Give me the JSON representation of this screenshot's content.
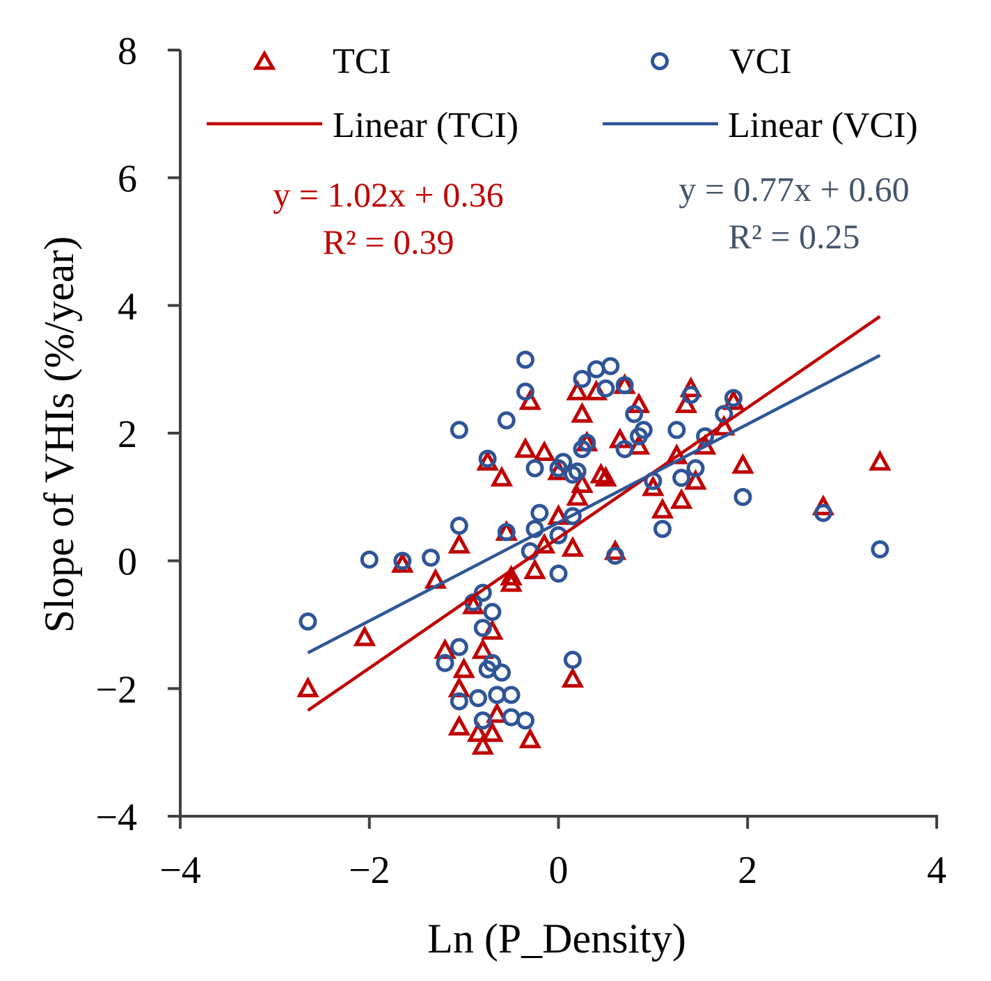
{
  "chart_data": {
    "type": "scatter",
    "xlabel": "Ln (P_Density)",
    "ylabel": "Slope of VHIs (%/year)",
    "xlim": [
      -4,
      4
    ],
    "ylim": [
      -4,
      8
    ],
    "xticks": [
      -4,
      -2,
      0,
      2,
      4
    ],
    "yticks": [
      -4,
      -2,
      0,
      2,
      4,
      6,
      8
    ],
    "xtick_labels": [
      "−4",
      "−2",
      "0",
      "2",
      "4"
    ],
    "ytick_labels": [
      "−4",
      "−2",
      "0",
      "2",
      "4",
      "6",
      "8"
    ],
    "legend": {
      "placement": "top",
      "tci_label": "TCI",
      "vci_label": "VCI",
      "linear_tci_label": "Linear (TCI)",
      "linear_vci_label": "Linear (VCI)"
    },
    "colors": {
      "tci": "#c00000",
      "vci": "#2f5597",
      "axis": "#404040",
      "vci_eq": "#44546a"
    },
    "series": [
      {
        "name": "TCI",
        "marker": "triangle",
        "points": [
          [
            -2.65,
            -2.0
          ],
          [
            -2.05,
            -1.2
          ],
          [
            -1.65,
            -0.05
          ],
          [
            -1.3,
            -0.3
          ],
          [
            -1.2,
            -1.4
          ],
          [
            -1.05,
            0.25
          ],
          [
            -1.05,
            -2.0
          ],
          [
            -1.05,
            -2.6
          ],
          [
            -1.0,
            -1.7
          ],
          [
            -0.9,
            -0.7
          ],
          [
            -0.85,
            -2.7
          ],
          [
            -0.8,
            -2.9
          ],
          [
            -0.8,
            -1.4
          ],
          [
            -0.75,
            1.55
          ],
          [
            -0.7,
            -2.7
          ],
          [
            -0.7,
            -1.1
          ],
          [
            -0.65,
            -2.4
          ],
          [
            -0.6,
            1.3
          ],
          [
            -0.55,
            0.45
          ],
          [
            -0.5,
            -0.35
          ],
          [
            -0.5,
            -0.25
          ],
          [
            -0.35,
            1.75
          ],
          [
            -0.3,
            2.5
          ],
          [
            -0.3,
            -2.8
          ],
          [
            -0.25,
            -0.15
          ],
          [
            -0.15,
            1.7
          ],
          [
            -0.15,
            0.25
          ],
          [
            0.0,
            1.4
          ],
          [
            0.0,
            0.7
          ],
          [
            0.15,
            0.2
          ],
          [
            0.15,
            -1.85
          ],
          [
            0.2,
            1.0
          ],
          [
            0.2,
            2.65
          ],
          [
            0.25,
            2.3
          ],
          [
            0.25,
            1.2
          ],
          [
            0.3,
            1.85
          ],
          [
            0.4,
            2.65
          ],
          [
            0.45,
            1.35
          ],
          [
            0.5,
            1.3
          ],
          [
            0.6,
            0.15
          ],
          [
            0.65,
            1.9
          ],
          [
            0.7,
            2.75
          ],
          [
            0.85,
            2.45
          ],
          [
            0.85,
            1.8
          ],
          [
            1.0,
            1.15
          ],
          [
            1.1,
            0.8
          ],
          [
            1.25,
            1.65
          ],
          [
            1.3,
            0.95
          ],
          [
            1.35,
            2.45
          ],
          [
            1.4,
            2.7
          ],
          [
            1.45,
            1.25
          ],
          [
            1.55,
            1.8
          ],
          [
            1.75,
            2.1
          ],
          [
            1.85,
            2.5
          ],
          [
            1.95,
            1.5
          ],
          [
            2.8,
            0.85
          ],
          [
            3.4,
            1.55
          ]
        ]
      },
      {
        "name": "VCI",
        "marker": "circle",
        "points": [
          [
            -2.65,
            -0.95
          ],
          [
            -2.0,
            0.02
          ],
          [
            -1.65,
            0.0
          ],
          [
            -1.35,
            0.05
          ],
          [
            -1.2,
            -1.6
          ],
          [
            -1.05,
            -1.35
          ],
          [
            -1.05,
            -2.2
          ],
          [
            -1.05,
            0.55
          ],
          [
            -1.05,
            2.05
          ],
          [
            -0.9,
            -0.65
          ],
          [
            -0.85,
            -2.15
          ],
          [
            -0.8,
            -1.05
          ],
          [
            -0.8,
            -0.5
          ],
          [
            -0.8,
            -2.5
          ],
          [
            -0.75,
            -1.7
          ],
          [
            -0.75,
            1.6
          ],
          [
            -0.7,
            -1.6
          ],
          [
            -0.7,
            -0.8
          ],
          [
            -0.65,
            -2.1
          ],
          [
            -0.6,
            -1.75
          ],
          [
            -0.55,
            2.2
          ],
          [
            -0.55,
            0.45
          ],
          [
            -0.5,
            -2.45
          ],
          [
            -0.5,
            -2.1
          ],
          [
            -0.35,
            -2.5
          ],
          [
            -0.35,
            2.65
          ],
          [
            -0.35,
            3.15
          ],
          [
            -0.3,
            0.15
          ],
          [
            -0.25,
            1.45
          ],
          [
            -0.25,
            0.5
          ],
          [
            -0.2,
            0.75
          ],
          [
            0.0,
            -0.2
          ],
          [
            0.0,
            0.4
          ],
          [
            0.0,
            1.45
          ],
          [
            0.05,
            1.55
          ],
          [
            0.15,
            -1.55
          ],
          [
            0.15,
            0.7
          ],
          [
            0.15,
            1.35
          ],
          [
            0.2,
            1.4
          ],
          [
            0.25,
            1.75
          ],
          [
            0.25,
            2.85
          ],
          [
            0.3,
            1.85
          ],
          [
            0.4,
            3.0
          ],
          [
            0.5,
            2.7
          ],
          [
            0.55,
            3.05
          ],
          [
            0.6,
            0.08
          ],
          [
            0.7,
            1.75
          ],
          [
            0.7,
            2.75
          ],
          [
            0.8,
            2.3
          ],
          [
            0.85,
            1.95
          ],
          [
            0.9,
            2.05
          ],
          [
            1.0,
            1.25
          ],
          [
            1.1,
            0.5
          ],
          [
            1.25,
            2.05
          ],
          [
            1.3,
            1.3
          ],
          [
            1.4,
            2.6
          ],
          [
            1.45,
            1.45
          ],
          [
            1.55,
            1.95
          ],
          [
            1.75,
            2.3
          ],
          [
            1.85,
            2.55
          ],
          [
            1.95,
            1.0
          ],
          [
            2.8,
            0.75
          ],
          [
            3.4,
            0.18
          ]
        ]
      }
    ],
    "trendlines": [
      {
        "name": "Linear (TCI)",
        "slope": 1.02,
        "intercept": 0.36,
        "x_range": [
          -2.65,
          3.4
        ],
        "equation": "y = 1.02x + 0.36",
        "r2": "R² = 0.39"
      },
      {
        "name": "Linear (VCI)",
        "slope": 0.77,
        "intercept": 0.6,
        "x_range": [
          -2.65,
          3.4
        ],
        "equation": "y = 0.77x + 0.60",
        "r2": "R² = 0.25"
      }
    ]
  }
}
